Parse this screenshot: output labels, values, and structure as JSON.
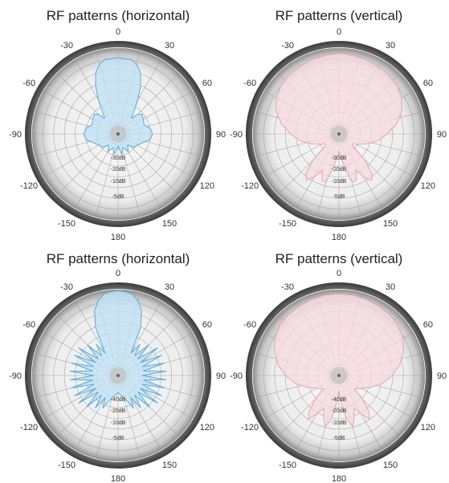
{
  "chart_data": [
    {
      "type": "polar",
      "title": "RF patterns (horizontal)",
      "color": "#5aa9dc",
      "fill": "#bfe0f4",
      "angle_labels": [
        {
          "angle": 0,
          "text": "0"
        },
        {
          "angle": 30,
          "text": "30"
        },
        {
          "angle": 60,
          "text": "60"
        },
        {
          "angle": 90,
          "text": "90"
        },
        {
          "angle": 120,
          "text": "120"
        },
        {
          "angle": 150,
          "text": "150"
        },
        {
          "angle": 180,
          "text": "180"
        },
        {
          "angle": -150,
          "text": "-150"
        },
        {
          "angle": -120,
          "text": "-120"
        },
        {
          "angle": -90,
          "text": "-90"
        },
        {
          "angle": -60,
          "text": "-60"
        },
        {
          "angle": -30,
          "text": "-30"
        }
      ],
      "radial_labels": [
        "-30dB",
        "-20dB",
        "-10dB",
        "-5dB"
      ],
      "radial_rings": [
        0.125,
        0.25,
        0.375,
        0.5,
        0.625,
        0.75,
        0.875,
        1.0
      ],
      "series": [
        {
          "angles": [
            -180,
            -170,
            -160,
            -150,
            -140,
            -130,
            -120,
            -110,
            -100,
            -90,
            -80,
            -70,
            -60,
            -50,
            -45,
            -40,
            -35,
            -30,
            -25,
            -20,
            -15,
            -10,
            -5,
            0,
            5,
            10,
            15,
            20,
            25,
            30,
            35,
            40,
            45,
            50,
            60,
            70,
            80,
            90,
            100,
            110,
            120,
            130,
            140,
            150,
            160,
            170,
            180
          ],
          "values": [
            0.14,
            0.24,
            0.17,
            0.24,
            0.17,
            0.24,
            0.26,
            0.3,
            0.38,
            0.4,
            0.38,
            0.32,
            0.34,
            0.36,
            0.32,
            0.24,
            0.32,
            0.46,
            0.62,
            0.76,
            0.84,
            0.88,
            0.88,
            0.89,
            0.88,
            0.88,
            0.84,
            0.76,
            0.62,
            0.46,
            0.32,
            0.24,
            0.32,
            0.36,
            0.34,
            0.32,
            0.38,
            0.4,
            0.38,
            0.3,
            0.26,
            0.24,
            0.17,
            0.24,
            0.17,
            0.24,
            0.14
          ]
        }
      ]
    },
    {
      "type": "polar",
      "title": "RF patterns (vertical)",
      "color": "#e9a2ad",
      "fill": "#f6dadf",
      "angle_labels": [
        {
          "angle": 0,
          "text": "0"
        },
        {
          "angle": 30,
          "text": "30"
        },
        {
          "angle": 60,
          "text": "60"
        },
        {
          "angle": 90,
          "text": "90"
        },
        {
          "angle": 120,
          "text": "120"
        },
        {
          "angle": 150,
          "text": "150"
        },
        {
          "angle": 180,
          "text": "180"
        },
        {
          "angle": -150,
          "text": "-150"
        },
        {
          "angle": -120,
          "text": "-120"
        },
        {
          "angle": -90,
          "text": "-90"
        },
        {
          "angle": -60,
          "text": "-60"
        },
        {
          "angle": -30,
          "text": "-30"
        }
      ],
      "radial_labels": [
        "-30dB",
        "-20dB",
        "-10dB",
        "-5dB"
      ],
      "radial_rings": [
        0.125,
        0.25,
        0.375,
        0.5,
        0.625,
        0.75,
        0.875,
        1.0
      ],
      "series": [
        {
          "angles": [
            -180,
            -175,
            -170,
            -165,
            -160,
            -155,
            -150,
            -145,
            -140,
            -135,
            -130,
            -125,
            -120,
            -110,
            -100,
            -90,
            -80,
            -70,
            -60,
            -50,
            -40,
            -30,
            -20,
            -10,
            0,
            10,
            20,
            30,
            40,
            50,
            60,
            70,
            80,
            90,
            100,
            110,
            120,
            125,
            130,
            135,
            140,
            145,
            150,
            155,
            160,
            165,
            170,
            175,
            180
          ],
          "values": [
            0.2,
            0.28,
            0.4,
            0.58,
            0.58,
            0.46,
            0.58,
            0.66,
            0.6,
            0.42,
            0.2,
            0.2,
            0.24,
            0.34,
            0.46,
            0.56,
            0.68,
            0.78,
            0.84,
            0.88,
            0.9,
            0.91,
            0.92,
            0.93,
            0.94,
            0.93,
            0.92,
            0.91,
            0.9,
            0.88,
            0.84,
            0.78,
            0.68,
            0.56,
            0.46,
            0.34,
            0.24,
            0.2,
            0.2,
            0.42,
            0.6,
            0.66,
            0.58,
            0.46,
            0.58,
            0.58,
            0.4,
            0.28,
            0.2
          ]
        }
      ]
    },
    {
      "type": "polar",
      "title": "RF patterns (horizontal)",
      "color": "#5aa9dc",
      "fill": "#bfe0f4",
      "angle_labels": [
        {
          "angle": 0,
          "text": "0"
        },
        {
          "angle": 30,
          "text": "30"
        },
        {
          "angle": 60,
          "text": "60"
        },
        {
          "angle": 90,
          "text": "90"
        },
        {
          "angle": 120,
          "text": "120"
        },
        {
          "angle": 150,
          "text": "150"
        },
        {
          "angle": 180,
          "text": "180"
        },
        {
          "angle": -150,
          "text": "-150"
        },
        {
          "angle": -120,
          "text": "-120"
        },
        {
          "angle": -90,
          "text": "-90"
        },
        {
          "angle": -60,
          "text": "-60"
        },
        {
          "angle": -30,
          "text": "-30"
        }
      ],
      "radial_labels": [
        "-40dB",
        "-20dB",
        "-10dB",
        "-5dB"
      ],
      "radial_rings": [
        0.125,
        0.25,
        0.375,
        0.5,
        0.625,
        0.75,
        0.875,
        1.0
      ],
      "series": [
        {
          "angles": [
            -180,
            -170,
            -160,
            -155,
            -150,
            -145,
            -140,
            -135,
            -130,
            -125,
            -120,
            -115,
            -110,
            -105,
            -100,
            -95,
            -90,
            -85,
            -80,
            -75,
            -70,
            -65,
            -60,
            -55,
            -50,
            -45,
            -40,
            -35,
            -30,
            -25,
            -20,
            -15,
            -10,
            -5,
            0,
            5,
            10,
            15,
            20,
            25,
            30,
            35,
            40,
            45,
            50,
            55,
            60,
            65,
            70,
            75,
            80,
            85,
            90,
            95,
            100,
            105,
            110,
            115,
            120,
            125,
            130,
            135,
            140,
            145,
            150,
            155,
            160,
            170,
            180
          ],
          "values": [
            0.2,
            0.24,
            0.32,
            0.42,
            0.3,
            0.46,
            0.3,
            0.52,
            0.3,
            0.56,
            0.3,
            0.56,
            0.3,
            0.56,
            0.3,
            0.56,
            0.28,
            0.56,
            0.3,
            0.56,
            0.3,
            0.56,
            0.3,
            0.56,
            0.3,
            0.5,
            0.3,
            0.44,
            0.3,
            0.62,
            0.8,
            0.9,
            0.96,
            0.98,
            0.99,
            0.98,
            0.96,
            0.9,
            0.8,
            0.62,
            0.3,
            0.44,
            0.3,
            0.5,
            0.3,
            0.56,
            0.3,
            0.56,
            0.3,
            0.56,
            0.3,
            0.56,
            0.28,
            0.56,
            0.3,
            0.56,
            0.3,
            0.56,
            0.3,
            0.56,
            0.3,
            0.52,
            0.3,
            0.46,
            0.3,
            0.42,
            0.32,
            0.24,
            0.2
          ]
        }
      ]
    },
    {
      "type": "polar",
      "title": "RF patterns (vertical)",
      "color": "#e9a2ad",
      "fill": "#f6dadf",
      "angle_labels": [
        {
          "angle": 0,
          "text": "0"
        },
        {
          "angle": 30,
          "text": "30"
        },
        {
          "angle": 60,
          "text": "60"
        },
        {
          "angle": 90,
          "text": "90"
        },
        {
          "angle": 120,
          "text": "120"
        },
        {
          "angle": 150,
          "text": "150"
        },
        {
          "angle": 180,
          "text": "180"
        },
        {
          "angle": -150,
          "text": "-150"
        },
        {
          "angle": -120,
          "text": "-120"
        },
        {
          "angle": -90,
          "text": "-90"
        },
        {
          "angle": -60,
          "text": "-60"
        },
        {
          "angle": -30,
          "text": "-30"
        }
      ],
      "radial_labels": [
        "-40dB",
        "-20dB",
        "-10dB",
        "-5dB"
      ],
      "radial_rings": [
        0.125,
        0.25,
        0.375,
        0.5,
        0.625,
        0.75,
        0.875,
        1.0
      ],
      "series": [
        {
          "angles": [
            -180,
            -175,
            -170,
            -165,
            -160,
            -155,
            -150,
            -145,
            -140,
            -135,
            -130,
            -120,
            -110,
            -100,
            -90,
            -80,
            -70,
            -60,
            -50,
            -40,
            -30,
            -20,
            -10,
            0,
            10,
            20,
            30,
            40,
            50,
            60,
            70,
            80,
            90,
            100,
            110,
            120,
            130,
            135,
            140,
            145,
            150,
            155,
            160,
            165,
            170,
            175,
            180
          ],
          "values": [
            0.18,
            0.32,
            0.52,
            0.62,
            0.52,
            0.42,
            0.52,
            0.62,
            0.54,
            0.38,
            0.24,
            0.3,
            0.4,
            0.52,
            0.62,
            0.72,
            0.8,
            0.86,
            0.9,
            0.92,
            0.93,
            0.94,
            0.95,
            0.95,
            0.95,
            0.94,
            0.93,
            0.92,
            0.9,
            0.86,
            0.8,
            0.72,
            0.62,
            0.52,
            0.4,
            0.3,
            0.24,
            0.38,
            0.54,
            0.62,
            0.52,
            0.42,
            0.52,
            0.62,
            0.52,
            0.32,
            0.18
          ]
        }
      ]
    }
  ]
}
